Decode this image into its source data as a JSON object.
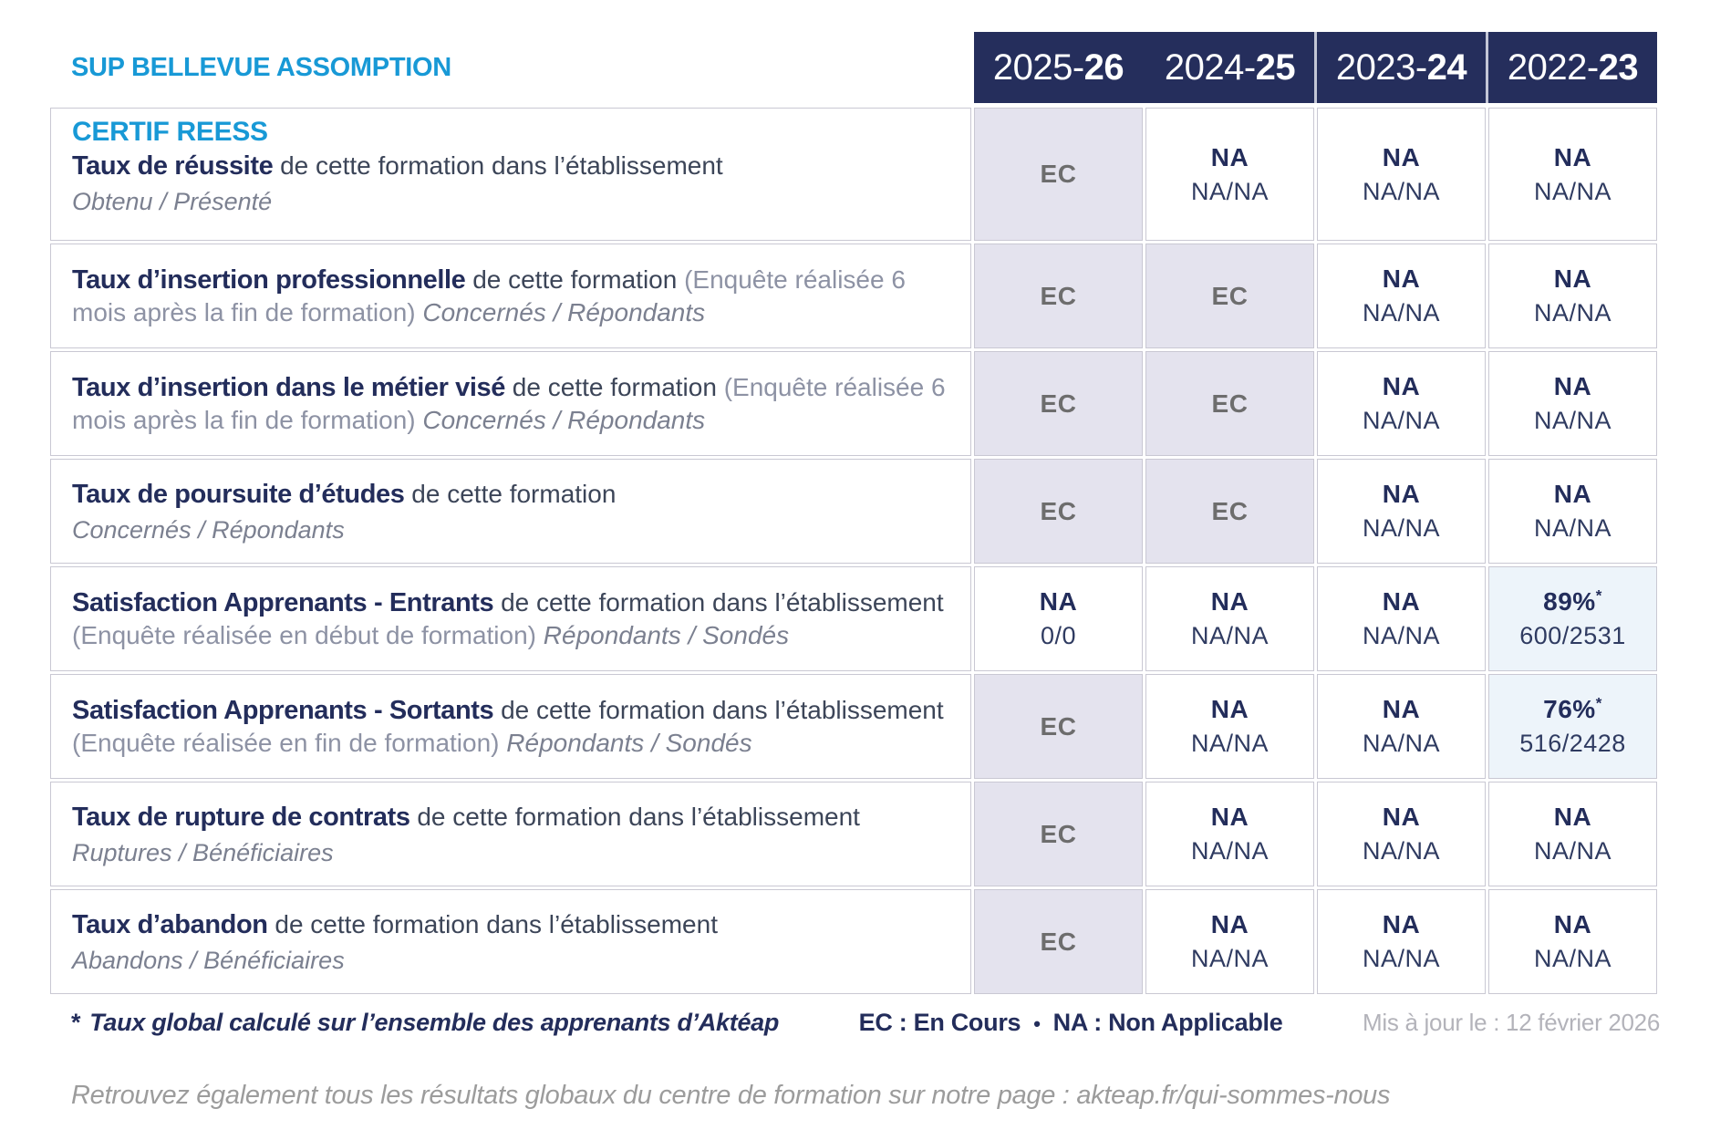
{
  "header": {
    "institution": "SUP BELLEVUE ASSOMPTION",
    "columns": [
      {
        "start": "2025-",
        "end": "26"
      },
      {
        "start": "2024-",
        "end": "25"
      },
      {
        "start": "2023-",
        "end": "24"
      },
      {
        "start": "2022-",
        "end": "23"
      }
    ]
  },
  "table": {
    "rows": [
      {
        "cert": "CERTIF REESS",
        "bold": "Taux de réussite",
        "normal": "de cette formation dans l’établissement",
        "paren": "",
        "tail": "",
        "subline": "Obtenu / Présenté",
        "cells": [
          {
            "main": "EC",
            "sup": "",
            "sub": "",
            "style": "ec"
          },
          {
            "main": "NA",
            "sup": "",
            "sub": "NA/NA",
            "style": "plain"
          },
          {
            "main": "NA",
            "sup": "",
            "sub": "NA/NA",
            "style": "plain"
          },
          {
            "main": "NA",
            "sup": "",
            "sub": "NA/NA",
            "style": "plain"
          }
        ]
      },
      {
        "cert": "",
        "bold": "Taux d’insertion professionnelle",
        "normal": "de cette formation",
        "paren": "(Enquête réalisée 6 mois après la fin de formation)",
        "tail": "Concernés / Répondants",
        "subline": "",
        "cells": [
          {
            "main": "EC",
            "sup": "",
            "sub": "",
            "style": "ec"
          },
          {
            "main": "EC",
            "sup": "",
            "sub": "",
            "style": "ec"
          },
          {
            "main": "NA",
            "sup": "",
            "sub": "NA/NA",
            "style": "plain"
          },
          {
            "main": "NA",
            "sup": "",
            "sub": "NA/NA",
            "style": "plain"
          }
        ]
      },
      {
        "cert": "",
        "bold": "Taux d’insertion dans le métier visé",
        "normal": "de cette formation",
        "paren": "(Enquête réalisée 6 mois après la fin de formation)",
        "tail": "Concernés / Répondants",
        "subline": "",
        "cells": [
          {
            "main": "EC",
            "sup": "",
            "sub": "",
            "style": "ec"
          },
          {
            "main": "EC",
            "sup": "",
            "sub": "",
            "style": "ec"
          },
          {
            "main": "NA",
            "sup": "",
            "sub": "NA/NA",
            "style": "plain"
          },
          {
            "main": "NA",
            "sup": "",
            "sub": "NA/NA",
            "style": "plain"
          }
        ]
      },
      {
        "cert": "",
        "bold": "Taux de poursuite d’études",
        "normal": "de cette formation",
        "paren": "",
        "tail": "",
        "subline": "Concernés / Répondants",
        "cells": [
          {
            "main": "EC",
            "sup": "",
            "sub": "",
            "style": "ec"
          },
          {
            "main": "EC",
            "sup": "",
            "sub": "",
            "style": "ec"
          },
          {
            "main": "NA",
            "sup": "",
            "sub": "NA/NA",
            "style": "plain"
          },
          {
            "main": "NA",
            "sup": "",
            "sub": "NA/NA",
            "style": "plain"
          }
        ]
      },
      {
        "cert": "",
        "bold": "Satisfaction Apprenants - Entrants",
        "normal": "de cette formation dans l’établissement",
        "paren": "(Enquête réalisée en début de formation)",
        "tail": "Répondants / Sondés",
        "subline": "",
        "cells": [
          {
            "main": "NA",
            "sup": "",
            "sub": "0/0",
            "style": "plain"
          },
          {
            "main": "NA",
            "sup": "",
            "sub": "NA/NA",
            "style": "plain"
          },
          {
            "main": "NA",
            "sup": "",
            "sub": "NA/NA",
            "style": "plain"
          },
          {
            "main": "89%",
            "sup": "*",
            "sub": "600/2531",
            "style": "highlight"
          }
        ]
      },
      {
        "cert": "",
        "bold": "Satisfaction Apprenants - Sortants",
        "normal": "de cette formation dans l’établissement",
        "paren": "(Enquête réalisée en fin de formation)",
        "tail": "Répondants / Sondés",
        "subline": "",
        "cells": [
          {
            "main": "EC",
            "sup": "",
            "sub": "",
            "style": "ec"
          },
          {
            "main": "NA",
            "sup": "",
            "sub": "NA/NA",
            "style": "plain"
          },
          {
            "main": "NA",
            "sup": "",
            "sub": "NA/NA",
            "style": "plain"
          },
          {
            "main": "76%",
            "sup": "*",
            "sub": "516/2428",
            "style": "highlight"
          }
        ]
      },
      {
        "cert": "",
        "bold": "Taux de rupture de contrats",
        "normal": "de cette formation dans l’établissement",
        "paren": "",
        "tail": "",
        "subline": "Ruptures / Bénéficiaires",
        "cells": [
          {
            "main": "EC",
            "sup": "",
            "sub": "",
            "style": "ec"
          },
          {
            "main": "NA",
            "sup": "",
            "sub": "NA/NA",
            "style": "plain"
          },
          {
            "main": "NA",
            "sup": "",
            "sub": "NA/NA",
            "style": "plain"
          },
          {
            "main": "NA",
            "sup": "",
            "sub": "NA/NA",
            "style": "plain"
          }
        ]
      },
      {
        "cert": "",
        "bold": "Taux d’abandon",
        "normal": "de cette formation dans l’établissement",
        "paren": "",
        "tail": "",
        "subline": "Abandons / Bénéficiaires",
        "cells": [
          {
            "main": "EC",
            "sup": "",
            "sub": "",
            "style": "ec"
          },
          {
            "main": "NA",
            "sup": "",
            "sub": "NA/NA",
            "style": "plain"
          },
          {
            "main": "NA",
            "sup": "",
            "sub": "NA/NA",
            "style": "plain"
          },
          {
            "main": "NA",
            "sup": "",
            "sub": "NA/NA",
            "style": "plain"
          }
        ]
      }
    ]
  },
  "footer": {
    "note_marker": "*",
    "note": "Taux global calculé sur l’ensemble des apprenants d’Aktéap",
    "legend_ec": "EC : En Cours",
    "legend_sep": "•",
    "legend_na": "NA : Non Applicable",
    "updated": "Mis à jour le : 12 février 2026",
    "bottom": "Retrouvez également tous les résultats globaux du centre de formation sur notre page : akteap.fr/qui-sommes-nous"
  },
  "colors": {
    "accent_blue": "#1899d6",
    "header_navy": "#252e5c",
    "label_navy": "#232d5b",
    "ec_background": "#e4e3ee",
    "highlight_background": "#edf4fa",
    "grid_border": "#c9c8d3"
  }
}
